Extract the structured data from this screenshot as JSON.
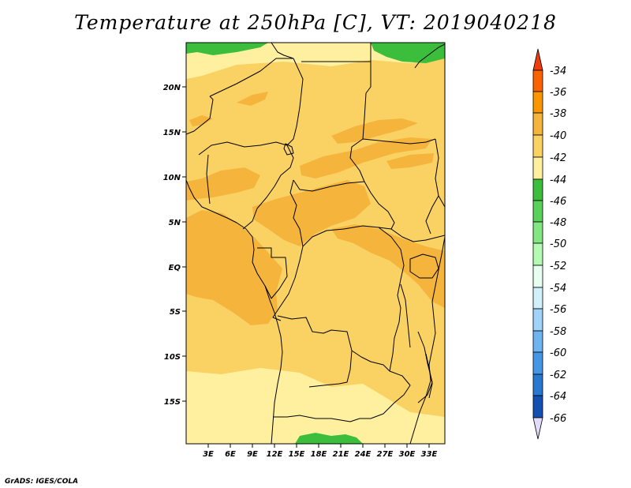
{
  "map": {
    "title": "Temperature at 250hPa [C], VT: 2019040218",
    "credit": "GrADS: IGES/COLA",
    "lat_labels": [
      "20N",
      "15N",
      "10N",
      "5N",
      "EQ",
      "5S",
      "10S",
      "15S"
    ],
    "lon_labels": [
      "3E",
      "6E",
      "9E",
      "12E",
      "15E",
      "18E",
      "21E",
      "24E",
      "27E",
      "30E",
      "33E"
    ]
  },
  "legend": {
    "labels": [
      "-34",
      "-36",
      "-38",
      "-40",
      "-42",
      "-44",
      "-46",
      "-48",
      "-50",
      "-52",
      "-54",
      "-56",
      "-58",
      "-60",
      "-62",
      "-64",
      "-66"
    ],
    "colors": {
      "c32": "#f03c0a",
      "c34": "#fa6400",
      "c36": "#fa9600",
      "c38": "#f5b43c",
      "c40": "#fad264",
      "c42": "#fff0a0",
      "c44": "#3cbe3c",
      "c46": "#5ad25a",
      "c48": "#82e682",
      "c50": "#b4fab4",
      "c52": "#e6fff0",
      "c54": "#d2f0fa",
      "c56": "#a0d2fa",
      "c58": "#6eb4f0",
      "c60": "#4696e6",
      "c62": "#2878d2",
      "c64": "#1450b4",
      "c66": "#0a1e78",
      "c68": "#e1dcfa"
    }
  }
}
